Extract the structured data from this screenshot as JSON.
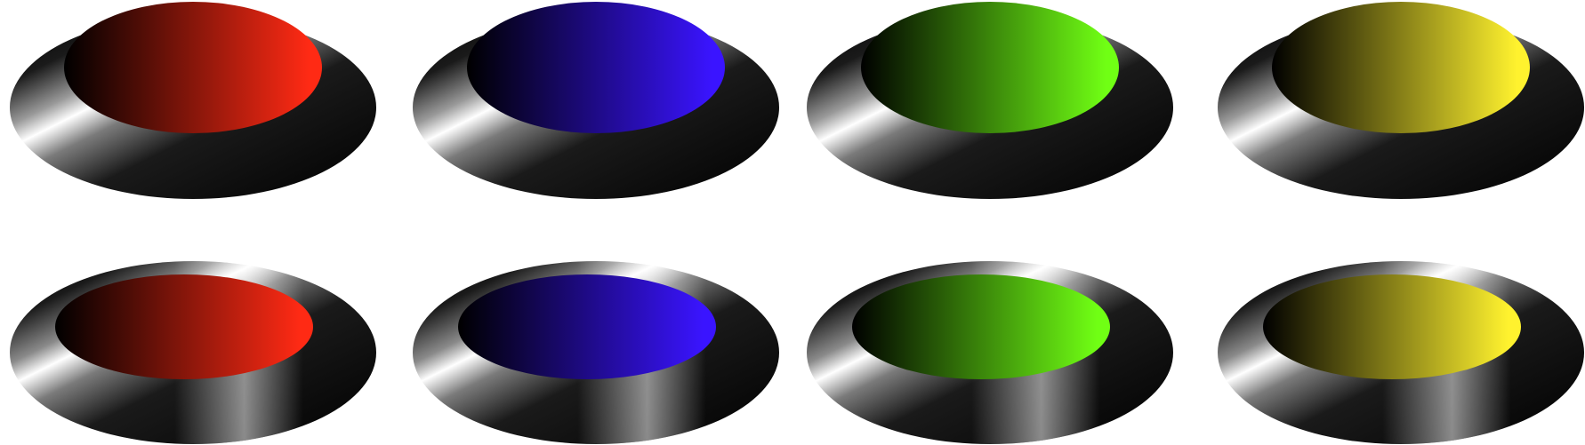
{
  "buttons": [
    {
      "row": "raised",
      "color": "red",
      "hex": "#ff2a14"
    },
    {
      "row": "raised",
      "color": "blue",
      "hex": "#3a14ff"
    },
    {
      "row": "raised",
      "color": "green",
      "hex": "#70ff14"
    },
    {
      "row": "raised",
      "color": "yellow",
      "hex": "#fff22e"
    },
    {
      "row": "pressed",
      "color": "red",
      "hex": "#ff2a14"
    },
    {
      "row": "pressed",
      "color": "blue",
      "hex": "#3a14ff"
    },
    {
      "row": "pressed",
      "color": "green",
      "hex": "#70ff14"
    },
    {
      "row": "pressed",
      "color": "yellow",
      "hex": "#fff22e"
    }
  ]
}
